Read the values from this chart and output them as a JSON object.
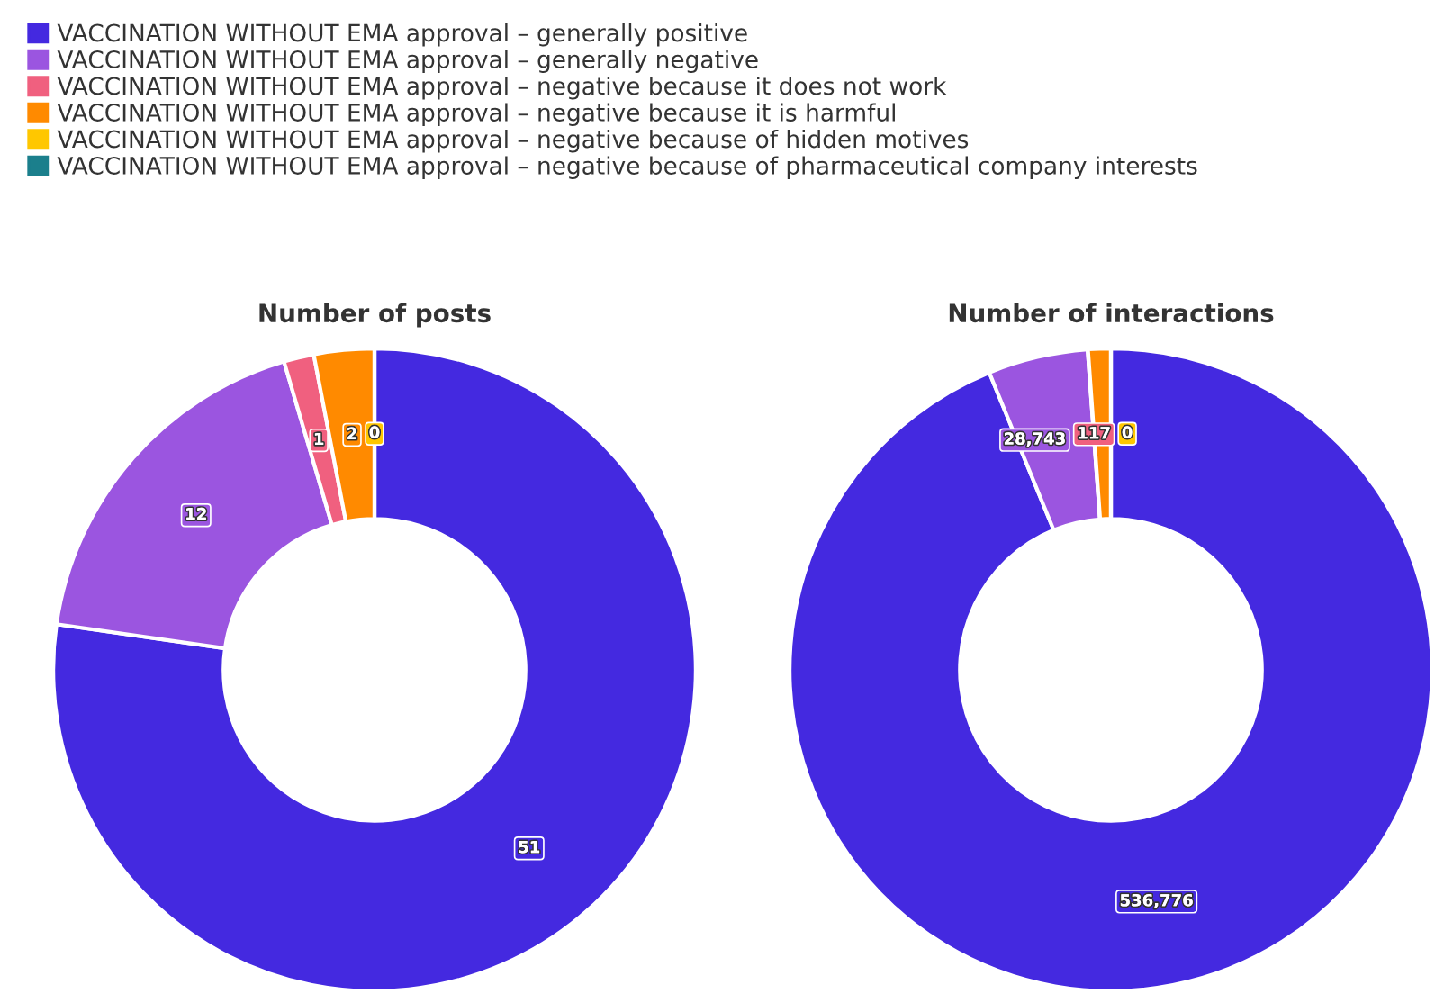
{
  "chart_data": [
    {
      "type": "donut",
      "title": "Number of posts",
      "legend": "top",
      "categories": [
        "VACCINATION WITHOUT EMA approval – generally positive",
        "VACCINATION WITHOUT EMA approval – generally negative",
        "VACCINATION WITHOUT EMA approval – negative because it does not work",
        "VACCINATION WITHOUT EMA approval – negative because it is harmful",
        "VACCINATION WITHOUT EMA approval – negative because of hidden motives",
        "VACCINATION WITHOUT EMA approval – negative because of pharmaceutical company interests"
      ],
      "values": [
        51,
        12,
        1,
        2,
        0,
        0
      ],
      "value_labels": [
        "51",
        "12",
        "1",
        "2",
        "0",
        null
      ],
      "colors": [
        "#4429e0",
        "#9b55e0",
        "#f0607f",
        "#ff8a00",
        "#ffc700",
        "#1b7f8c"
      ]
    },
    {
      "type": "donut",
      "title": "Number of interactions",
      "values": [
        536776,
        28743,
        117,
        6500,
        0,
        0
      ],
      "value_labels": [
        "536,776",
        "28,743",
        "117",
        null,
        "0",
        null
      ],
      "colors": [
        "#4429e0",
        "#9b55e0",
        "#f0607f",
        "#ff8a00",
        "#ffc700",
        "#1b7f8c"
      ]
    }
  ]
}
